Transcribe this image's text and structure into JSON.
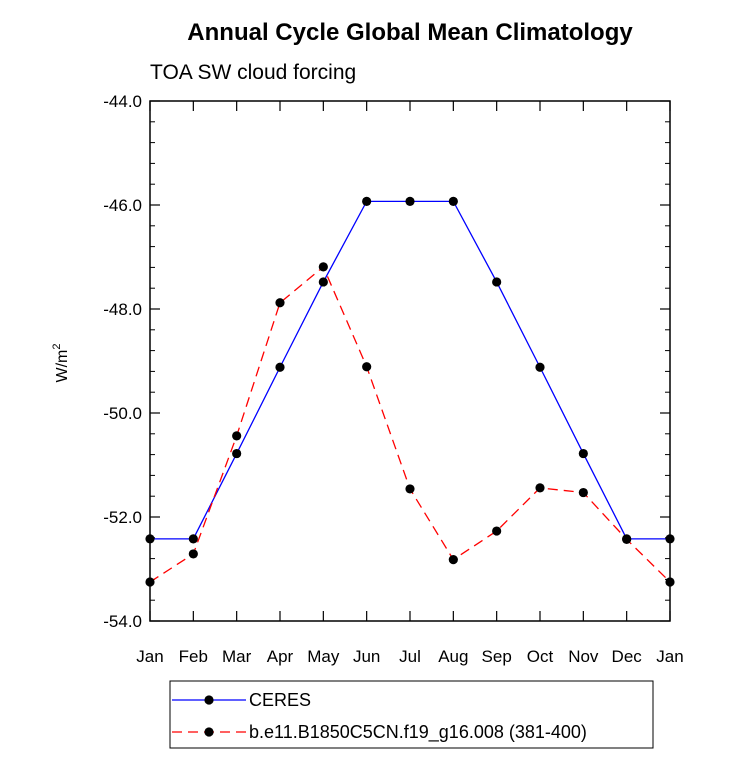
{
  "chart_data": {
    "type": "line",
    "title": "Annual Cycle Global Mean Climatology",
    "subtitle": "TOA SW cloud forcing",
    "ylabel": "W/m",
    "ylabel_superscript": "2",
    "xlabel": "",
    "ylim": [
      -54.0,
      -44.0
    ],
    "yticks": [
      -54.0,
      -52.0,
      -50.0,
      -48.0,
      -46.0,
      -44.0
    ],
    "ytick_labels": [
      "-54.0",
      "-52.0",
      "-50.0",
      "-48.0",
      "-46.0",
      "-44.0"
    ],
    "categories": [
      "Jan",
      "Feb",
      "Mar",
      "Apr",
      "May",
      "Jun",
      "Jul",
      "Aug",
      "Sep",
      "Oct",
      "Nov",
      "Dec",
      "Jan"
    ],
    "series": [
      {
        "name": "CERES",
        "color": "#0000ff",
        "dash": "solid",
        "values": [
          -52.42,
          -52.42,
          -50.78,
          -49.12,
          -47.48,
          -45.93,
          -45.93,
          -45.93,
          -47.48,
          -49.12,
          -50.78,
          -52.42,
          -52.42
        ]
      },
      {
        "name": "b.e11.B1850C5CN.f19_g16.008 (381-400)",
        "color": "#ff0000",
        "dash": "dashed",
        "values": [
          -53.25,
          -52.71,
          -50.44,
          -47.88,
          -47.19,
          -49.11,
          -51.46,
          -52.82,
          -52.27,
          -51.44,
          -51.53,
          -52.43,
          -53.25
        ]
      }
    ],
    "grid": false,
    "legend_position": "bottom"
  }
}
